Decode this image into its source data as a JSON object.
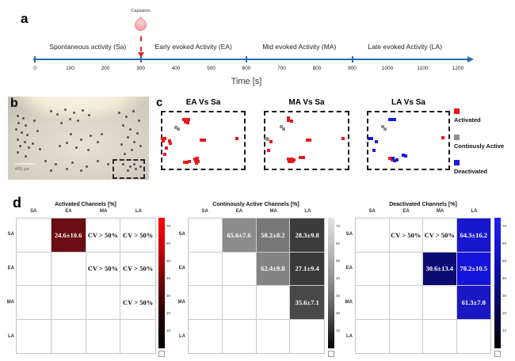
{
  "panel_a": {
    "label": "a",
    "capsaicin_label": "Capsaicin",
    "phase_labels": [
      "Spontaneous activity (Sa)",
      "Early evoked Activity (EA)",
      "Mid evoked Activity (MA)",
      "Late evoked Activity (LA)"
    ],
    "axis": {
      "xlabel": "Time [s]",
      "range": [
        0,
        1200
      ],
      "tick_values": [
        0,
        100,
        200,
        300,
        400,
        500,
        600,
        700,
        800,
        900,
        1000,
        1100,
        1200
      ],
      "major_ticks": [
        0,
        300,
        600,
        900
      ],
      "capsaicin_time": 300,
      "axis_color": "#2a6cae",
      "capsaicin_color": "#e02128"
    }
  },
  "panel_b": {
    "label": "b",
    "scalebar_text": "400 µm",
    "dots": [
      [
        6,
        22
      ],
      [
        10,
        25
      ],
      [
        7,
        30
      ],
      [
        12,
        33
      ],
      [
        5,
        38
      ],
      [
        9,
        42
      ],
      [
        13,
        45
      ],
      [
        6,
        50
      ],
      [
        11,
        53
      ],
      [
        8,
        58
      ],
      [
        14,
        60
      ],
      [
        6,
        66
      ],
      [
        12,
        70
      ],
      [
        18,
        28
      ],
      [
        20,
        40
      ],
      [
        17,
        55
      ],
      [
        22,
        62
      ],
      [
        30,
        16
      ],
      [
        34,
        20
      ],
      [
        40,
        14
      ],
      [
        46,
        18
      ],
      [
        43,
        26
      ],
      [
        52,
        15
      ],
      [
        57,
        21
      ],
      [
        37,
        30
      ],
      [
        49,
        28
      ],
      [
        44,
        44
      ],
      [
        51,
        50
      ],
      [
        58,
        46
      ],
      [
        41,
        54
      ],
      [
        63,
        53
      ],
      [
        48,
        60
      ],
      [
        56,
        63
      ],
      [
        36,
        58
      ],
      [
        66,
        44
      ],
      [
        78,
        18
      ],
      [
        83,
        23
      ],
      [
        88,
        16
      ],
      [
        92,
        28
      ],
      [
        81,
        33
      ],
      [
        86,
        38
      ],
      [
        91,
        43
      ],
      [
        84,
        48
      ],
      [
        89,
        53
      ],
      [
        93,
        58
      ],
      [
        80,
        56
      ],
      [
        87,
        63
      ],
      [
        82,
        68
      ],
      [
        26,
        76
      ],
      [
        33,
        80
      ],
      [
        45,
        78
      ],
      [
        55,
        83
      ],
      [
        63,
        76
      ],
      [
        70,
        80
      ],
      [
        41,
        86
      ],
      [
        51,
        88
      ],
      [
        30,
        88
      ],
      [
        81,
        80
      ],
      [
        86,
        83
      ],
      [
        90,
        86
      ],
      [
        84,
        88
      ],
      [
        89,
        80
      ],
      [
        93,
        83
      ]
    ]
  },
  "panel_c": {
    "label": "c",
    "type_colors": {
      "a": "#e8191d",
      "c": "#8f8f8f",
      "d": "#1a1ad6"
    },
    "plots": [
      {
        "title": "EA Vs Sa",
        "points": [
          [
            0.27,
            0.15,
            "a"
          ],
          [
            0.3,
            0.14,
            "a"
          ],
          [
            0.33,
            0.15,
            "a"
          ],
          [
            0.29,
            0.19,
            "a"
          ],
          [
            0.32,
            0.2,
            "a"
          ],
          [
            0.18,
            0.28,
            "c"
          ],
          [
            0.21,
            0.31,
            "c"
          ],
          [
            0.02,
            0.46,
            "a"
          ],
          [
            0.05,
            0.47,
            "a"
          ],
          [
            0.03,
            0.51,
            "a"
          ],
          [
            0.1,
            0.5,
            "a"
          ],
          [
            0.11,
            0.54,
            "a"
          ],
          [
            0.48,
            0.49,
            "a"
          ],
          [
            0.51,
            0.49,
            "a"
          ],
          [
            0.9,
            0.47,
            "a"
          ],
          [
            0.07,
            0.62,
            "a"
          ],
          [
            0.05,
            0.73,
            "a"
          ],
          [
            0.28,
            0.86,
            "a"
          ],
          [
            0.31,
            0.86,
            "a"
          ],
          [
            0.34,
            0.85,
            "a"
          ],
          [
            0.4,
            0.81,
            "a"
          ],
          [
            0.43,
            0.8,
            "a"
          ],
          [
            0.41,
            0.84,
            "a"
          ],
          [
            0.44,
            0.85,
            "a"
          ],
          [
            0.42,
            0.88,
            "a"
          ]
        ]
      },
      {
        "title": "MA Vs Sa",
        "points": [
          [
            0.29,
            0.12,
            "a"
          ],
          [
            0.29,
            0.16,
            "a"
          ],
          [
            0.32,
            0.17,
            "a"
          ],
          [
            0.2,
            0.27,
            "c"
          ],
          [
            0.23,
            0.3,
            "c"
          ],
          [
            0.03,
            0.47,
            "c"
          ],
          [
            0.05,
            0.48,
            "c"
          ],
          [
            0.08,
            0.52,
            "a"
          ],
          [
            0.51,
            0.49,
            "a"
          ],
          [
            0.54,
            0.49,
            "a"
          ],
          [
            0.93,
            0.47,
            "a"
          ],
          [
            0.06,
            0.66,
            "a"
          ],
          [
            0.29,
            0.81,
            "a"
          ],
          [
            0.32,
            0.81,
            "a"
          ],
          [
            0.35,
            0.82,
            "a"
          ],
          [
            0.3,
            0.85,
            "a"
          ],
          [
            0.33,
            0.85,
            "a"
          ],
          [
            0.43,
            0.78,
            "a"
          ],
          [
            0.46,
            0.79,
            "a"
          ]
        ]
      },
      {
        "title": "LA Vs Sa",
        "points": [
          [
            0.28,
            0.14,
            "d"
          ],
          [
            0.31,
            0.14,
            "d"
          ],
          [
            0.33,
            0.15,
            "d"
          ],
          [
            0.19,
            0.27,
            "c"
          ],
          [
            0.22,
            0.3,
            "c"
          ],
          [
            0.03,
            0.46,
            "d"
          ],
          [
            0.06,
            0.47,
            "d"
          ],
          [
            0.11,
            0.52,
            "d"
          ],
          [
            0.91,
            0.45,
            "a"
          ],
          [
            0.09,
            0.66,
            "d"
          ],
          [
            0.28,
            0.8,
            "a"
          ],
          [
            0.3,
            0.83,
            "a"
          ],
          [
            0.31,
            0.8,
            "d"
          ],
          [
            0.33,
            0.84,
            "d"
          ],
          [
            0.36,
            0.82,
            "d"
          ],
          [
            0.44,
            0.75,
            "d"
          ],
          [
            0.47,
            0.76,
            "d"
          ]
        ]
      }
    ],
    "legend": [
      {
        "label": "Activated",
        "color": "#e8191d"
      },
      {
        "label": "Contiously Active",
        "color": "#8f8f8f"
      },
      {
        "label": "Deactivated",
        "color": "#1a1ad6"
      }
    ]
  },
  "panel_d": {
    "label": "d",
    "matrices": [
      {
        "title": "Activated Channels [%]",
        "columns": [
          "SA",
          "EA",
          "MA",
          "LA"
        ],
        "rows": [
          "SA",
          "EA",
          "MA",
          "LA"
        ],
        "cells": [
          {
            "row": 0,
            "col": 1,
            "text": "24.6±10.6",
            "bg": "#6b0d12",
            "fg": "#ffffff"
          },
          {
            "row": 0,
            "col": 2,
            "text": "CV > 50%",
            "bg": "#ffffff",
            "fg": "#111111"
          },
          {
            "row": 0,
            "col": 3,
            "text": "CV > 50%",
            "bg": "#ffffff",
            "fg": "#111111"
          },
          {
            "row": 1,
            "col": 2,
            "text": "CV > 50%",
            "bg": "#ffffff",
            "fg": "#111111"
          },
          {
            "row": 1,
            "col": 3,
            "text": "CV > 50%",
            "bg": "#ffffff",
            "fg": "#111111"
          },
          {
            "row": 2,
            "col": 3,
            "text": "CV > 50%",
            "bg": "#ffffff",
            "fg": "#111111"
          }
        ],
        "colorbar": {
          "ticks": [
            70,
            60,
            50,
            40,
            30,
            20,
            10
          ],
          "max": 75,
          "stops": [
            "#ff0a0a",
            "#c40105",
            "#6f0003",
            "#240000",
            "#000000"
          ]
        }
      },
      {
        "title": "Continously Active Channels [%]",
        "columns": [
          "SA",
          "EA",
          "MA",
          "LA"
        ],
        "rows": [
          "SA",
          "EA",
          "MA",
          "LA"
        ],
        "cells": [
          {
            "row": 0,
            "col": 1,
            "text": "65.6±7.6",
            "bg": "#8c8c8c",
            "fg": "#ffffff"
          },
          {
            "row": 0,
            "col": 2,
            "text": "58.2±8.2",
            "bg": "#787878",
            "fg": "#ffffff"
          },
          {
            "row": 0,
            "col": 3,
            "text": "28.3±9.8",
            "bg": "#3b3b3b",
            "fg": "#ffffff"
          },
          {
            "row": 1,
            "col": 2,
            "text": "62.4±9.8",
            "bg": "#848484",
            "fg": "#ffffff"
          },
          {
            "row": 1,
            "col": 3,
            "text": "27.1±9.4",
            "bg": "#393939",
            "fg": "#ffffff"
          },
          {
            "row": 2,
            "col": 3,
            "text": "35.6±7.1",
            "bg": "#484848",
            "fg": "#ffffff"
          }
        ],
        "colorbar": {
          "ticks": [
            70,
            60,
            50,
            40,
            30,
            20,
            10
          ],
          "max": 75,
          "stops": [
            "#e4e4e4",
            "#b9b9b9",
            "#8a8a8a",
            "#4f4f4f",
            "#000000"
          ]
        }
      },
      {
        "title": "Deactivated Channels [%]",
        "columns": [
          "SA",
          "EA",
          "MA",
          "LA"
        ],
        "rows": [
          "SA",
          "EA",
          "MA",
          "LA"
        ],
        "cells": [
          {
            "row": 0,
            "col": 1,
            "text": "CV > 50%",
            "bg": "#ffffff",
            "fg": "#111111"
          },
          {
            "row": 0,
            "col": 2,
            "text": "CV > 50%",
            "bg": "#ffffff",
            "fg": "#111111"
          },
          {
            "row": 0,
            "col": 3,
            "text": "64.3±16.2",
            "bg": "#1717cd",
            "fg": "#ffffff"
          },
          {
            "row": 1,
            "col": 2,
            "text": "30.6±13.4",
            "bg": "#0b0b72",
            "fg": "#ffffff"
          },
          {
            "row": 1,
            "col": 3,
            "text": "70.2±10.5",
            "bg": "#1414da",
            "fg": "#ffffff"
          },
          {
            "row": 2,
            "col": 3,
            "text": "61.3±7.0",
            "bg": "#1919c3",
            "fg": "#ffffff"
          }
        ],
        "colorbar": {
          "ticks": [
            70,
            60,
            50,
            40,
            30,
            20,
            10
          ],
          "max": 75,
          "stops": [
            "#2121f5",
            "#1414c9",
            "#0b0b8f",
            "#050547",
            "#000000"
          ]
        }
      }
    ]
  }
}
